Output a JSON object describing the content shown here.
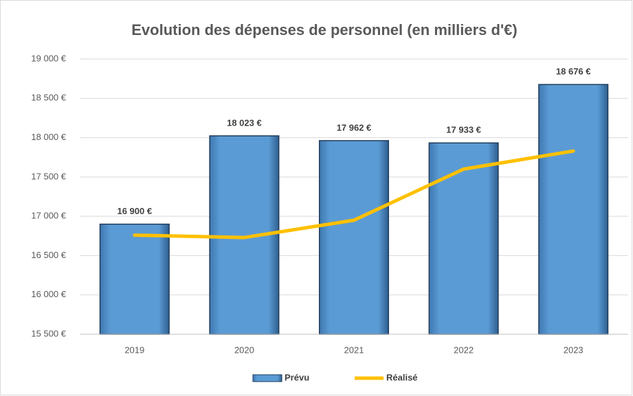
{
  "chart_data": {
    "type": "bar",
    "title": "Evolution des dépenses de personnel (en milliers d'€)",
    "categories": [
      "2019",
      "2020",
      "2021",
      "2022",
      "2023"
    ],
    "series": [
      {
        "name": "Prévu",
        "type": "bar",
        "color": "#5b9bd5",
        "values": [
          16900,
          18023,
          17962,
          17933,
          18676
        ],
        "value_labels": [
          "16 900 €",
          "18 023 €",
          "17 962 €",
          "17 933 €",
          "18 676 €"
        ]
      },
      {
        "name": "Réalisé",
        "type": "line",
        "color": "#ffc000",
        "values": [
          16760,
          16730,
          16950,
          17600,
          17830
        ]
      }
    ],
    "ylim": [
      15500,
      19000
    ],
    "yticks": [
      {
        "value": 15500,
        "label": "15 500 €"
      },
      {
        "value": 16000,
        "label": "16 000 €"
      },
      {
        "value": 16500,
        "label": "16 500 €"
      },
      {
        "value": 17000,
        "label": "17 000 €"
      },
      {
        "value": 17500,
        "label": "17 500 €"
      },
      {
        "value": 18000,
        "label": "18 000 €"
      },
      {
        "value": 18500,
        "label": "18 500 €"
      },
      {
        "value": 19000,
        "label": "19 000 €"
      }
    ],
    "grid": true,
    "legend": "bottom"
  }
}
